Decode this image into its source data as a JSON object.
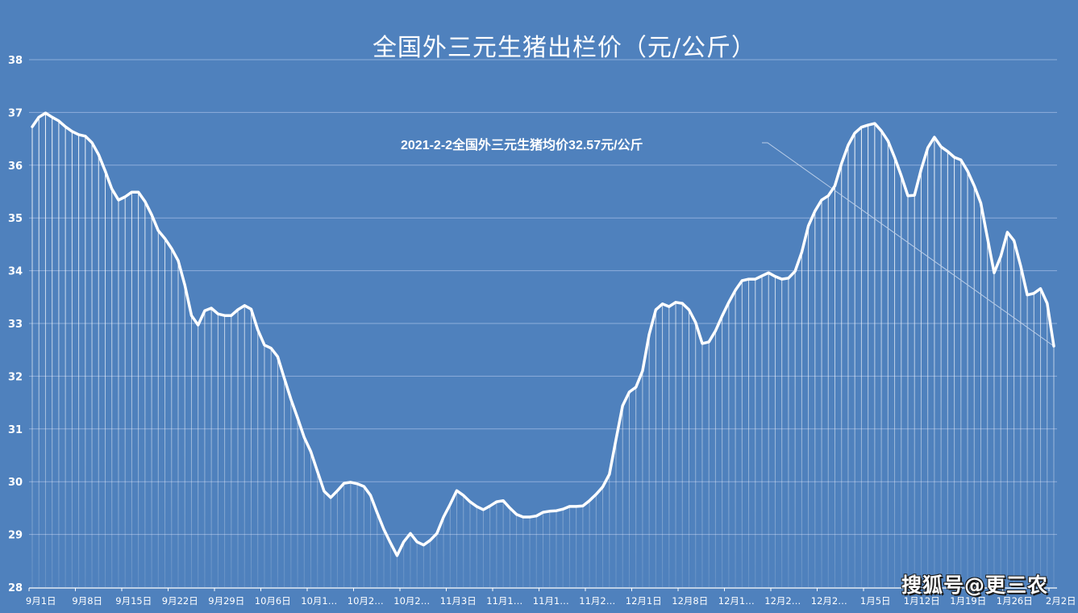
{
  "title": "全国外三元生猪出栏价（元/公斤）",
  "annotation": "2021-2-2全国外三元生猪均价32.57元/公斤",
  "watermark": "搜狐号@更三农",
  "colors": {
    "background": "#4f81bd",
    "line": "#ffffff",
    "gridline": "#8eaedb",
    "text": "#ffffff"
  },
  "chart_data": {
    "type": "line",
    "title": "全国外三元生猪出栏价（元/公斤）",
    "xlabel": "",
    "ylabel": "元/公斤",
    "ylim": [
      28,
      38
    ],
    "yticks": [
      28,
      29,
      30,
      31,
      32,
      33,
      34,
      35,
      36,
      37,
      38
    ],
    "grid": true,
    "legend": "none",
    "drop_lines": true,
    "x_tick_labels": [
      "9月1日",
      "9月8日",
      "9月15日",
      "9月22日",
      "9月29日",
      "10月6日",
      "10月1…",
      "10月2…",
      "10月2…",
      "11月3日",
      "11月1…",
      "11月1…",
      "11月2…",
      "12月1日",
      "12月8日",
      "12月1…",
      "12月2…",
      "12月2…",
      "1月5日",
      "1月12日",
      "1月19日",
      "1月26日",
      "2月2日"
    ],
    "annotations": [
      {
        "text": "2021-2-2全国外三元生猪均价32.57元/公斤",
        "points_to": "2月2日",
        "value": 32.57
      }
    ],
    "series": [
      {
        "name": "全国外三元生猪出栏价",
        "values": [
          36.73,
          36.91,
          36.99,
          36.91,
          36.84,
          36.73,
          36.64,
          36.58,
          36.55,
          36.43,
          36.2,
          35.89,
          35.55,
          35.34,
          35.4,
          35.49,
          35.49,
          35.31,
          35.06,
          34.76,
          34.61,
          34.42,
          34.19,
          33.73,
          33.15,
          32.97,
          33.24,
          33.29,
          33.18,
          33.15,
          33.15,
          33.26,
          33.34,
          33.27,
          32.88,
          32.59,
          32.53,
          32.37,
          31.96,
          31.56,
          31.21,
          30.84,
          30.57,
          30.19,
          29.82,
          29.7,
          29.83,
          29.97,
          29.99,
          29.96,
          29.91,
          29.74,
          29.41,
          29.1,
          28.84,
          28.6,
          28.86,
          29.02,
          28.86,
          28.8,
          28.89,
          29.02,
          29.33,
          29.57,
          29.83,
          29.74,
          29.62,
          29.53,
          29.47,
          29.54,
          29.62,
          29.64,
          29.5,
          29.38,
          29.33,
          29.33,
          29.35,
          29.42,
          29.44,
          29.45,
          29.48,
          29.53,
          29.53,
          29.54,
          29.64,
          29.76,
          29.9,
          30.14,
          30.8,
          31.44,
          31.7,
          31.79,
          32.1,
          32.79,
          33.26,
          33.37,
          33.32,
          33.4,
          33.38,
          33.26,
          33.02,
          32.62,
          32.65,
          32.86,
          33.14,
          33.4,
          33.63,
          33.81,
          33.84,
          33.84,
          33.9,
          33.96,
          33.89,
          33.84,
          33.86,
          33.99,
          34.35,
          34.85,
          35.13,
          35.34,
          35.42,
          35.61,
          36.03,
          36.38,
          36.61,
          36.72,
          36.76,
          36.79,
          36.65,
          36.46,
          36.15,
          35.8,
          35.42,
          35.43,
          35.92,
          36.33,
          36.53,
          36.35,
          36.26,
          36.15,
          36.1,
          35.89,
          35.61,
          35.28,
          34.62,
          33.96,
          34.27,
          34.73,
          34.57,
          34.09,
          33.54,
          33.57,
          33.66,
          33.38,
          32.57
        ]
      }
    ]
  }
}
